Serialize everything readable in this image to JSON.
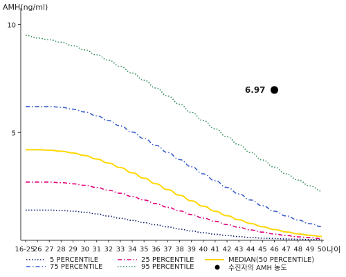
{
  "chart_data": {
    "type": "line",
    "ylabel": "AMH(ng/ml)",
    "xlabel": "나이",
    "ylim": [
      0,
      10.5
    ],
    "yticks": [
      5,
      10
    ],
    "categories": [
      "16-25",
      "26",
      "27",
      "28",
      "29",
      "30",
      "31",
      "32",
      "33",
      "34",
      "35",
      "36",
      "37",
      "38",
      "39",
      "40",
      "41",
      "42",
      "43",
      "44",
      "45",
      "46",
      "47",
      "48",
      "49",
      "50"
    ],
    "series": [
      {
        "name": "5 PERCENTILE",
        "color": "#0d1a6b",
        "dash": "dotted",
        "values": [
          1.4,
          1.4,
          1.4,
          1.38,
          1.35,
          1.3,
          1.22,
          1.12,
          1.02,
          0.92,
          0.82,
          0.72,
          0.62,
          0.52,
          0.43,
          0.35,
          0.28,
          0.22,
          0.17,
          0.13,
          0.1,
          0.08,
          0.06,
          0.05,
          0.04,
          0.03
        ]
      },
      {
        "name": "25 PERCENTILE",
        "color": "#e0007a",
        "dash": "dashdot",
        "values": [
          2.7,
          2.7,
          2.7,
          2.67,
          2.62,
          2.55,
          2.45,
          2.32,
          2.18,
          2.03,
          1.87,
          1.7,
          1.53,
          1.36,
          1.19,
          1.03,
          0.88,
          0.73,
          0.6,
          0.48,
          0.38,
          0.29,
          0.22,
          0.16,
          0.12,
          0.08
        ]
      },
      {
        "name": "MEDIAN(50 PERCENTILE)",
        "color": "#ffd700",
        "dash": "solid",
        "values": [
          4.2,
          4.2,
          4.18,
          4.13,
          4.05,
          3.93,
          3.77,
          3.58,
          3.37,
          3.13,
          2.88,
          2.62,
          2.35,
          2.09,
          1.83,
          1.58,
          1.35,
          1.14,
          0.95,
          0.78,
          0.63,
          0.5,
          0.39,
          0.3,
          0.23,
          0.18
        ]
      },
      {
        "name": "75 PERCENTILE",
        "color": "#3a5fcd",
        "dash": "dashdot",
        "values": [
          6.2,
          6.2,
          6.2,
          6.17,
          6.08,
          5.95,
          5.77,
          5.55,
          5.3,
          5.02,
          4.72,
          4.4,
          4.07,
          3.74,
          3.41,
          3.08,
          2.76,
          2.45,
          2.15,
          1.87,
          1.6,
          1.35,
          1.13,
          0.94,
          0.77,
          0.63
        ]
      },
      {
        "name": "95 PERCENTILE",
        "color": "#2e8b57",
        "dash": "dotted",
        "values": [
          9.5,
          9.38,
          9.3,
          9.18,
          9.02,
          8.83,
          8.6,
          8.35,
          8.06,
          7.75,
          7.42,
          7.06,
          6.69,
          6.31,
          5.93,
          5.55,
          5.17,
          4.8,
          4.43,
          4.07,
          3.72,
          3.39,
          3.08,
          2.79,
          2.52,
          2.28
        ]
      }
    ],
    "annotation": {
      "x": "46",
      "y": 6.97,
      "label": "6.97",
      "legend_label": "수진자의 AMH 농도"
    },
    "legend_position": "bottom",
    "grid": false
  }
}
